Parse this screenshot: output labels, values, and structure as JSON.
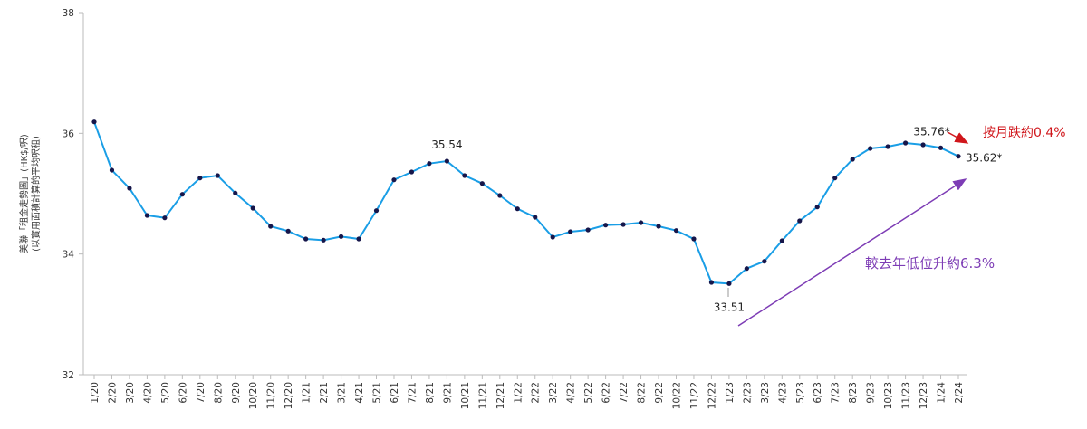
{
  "chart_data": {
    "type": "line",
    "y_label": [
      "美聯「租金走勢圖」(HK$/呎)",
      "(以實用面積計算的平均呎租)"
    ],
    "categories": [
      "1/20",
      "2/20",
      "3/20",
      "4/20",
      "5/20",
      "6/20",
      "7/20",
      "8/20",
      "9/20",
      "10/20",
      "11/20",
      "12/20",
      "1/21",
      "2/21",
      "3/21",
      "4/21",
      "5/21",
      "6/21",
      "7/21",
      "8/21",
      "9/21",
      "10/21",
      "11/21",
      "12/21",
      "1/22",
      "2/22",
      "3/22",
      "4/22",
      "5/22",
      "6/22",
      "7/22",
      "8/22",
      "9/22",
      "10/22",
      "11/22",
      "12/22",
      "1/23",
      "2/23",
      "3/23",
      "4/23",
      "5/23",
      "6/23",
      "7/23",
      "8/23",
      "9/23",
      "10/23",
      "11/23",
      "12/23",
      "1/24",
      "2/24"
    ],
    "values": [
      36.19,
      35.39,
      35.09,
      34.64,
      34.6,
      34.99,
      35.26,
      35.3,
      35.01,
      34.76,
      34.46,
      34.38,
      34.25,
      34.23,
      34.29,
      34.25,
      34.72,
      35.23,
      35.36,
      35.5,
      35.54,
      35.3,
      35.17,
      34.97,
      34.75,
      34.61,
      34.28,
      34.37,
      34.4,
      34.48,
      34.49,
      34.52,
      34.46,
      34.39,
      34.25,
      33.53,
      33.51,
      33.76,
      33.88,
      34.22,
      34.55,
      34.78,
      35.26,
      35.57,
      35.75,
      35.78,
      35.84,
      35.81,
      35.76,
      35.62
    ],
    "value_labels": [
      null,
      null,
      null,
      null,
      null,
      null,
      null,
      null,
      null,
      null,
      null,
      null,
      null,
      null,
      null,
      null,
      null,
      null,
      null,
      null,
      "35.54",
      null,
      null,
      null,
      null,
      null,
      null,
      null,
      null,
      null,
      null,
      null,
      null,
      null,
      null,
      null,
      "33.51",
      null,
      null,
      null,
      null,
      null,
      null,
      null,
      null,
      null,
      null,
      null,
      "35.76*",
      "35.62*"
    ],
    "color": "#1a9ee6",
    "marker_color": "#16164a",
    "ylim": [
      32,
      38
    ],
    "yticks": [
      32,
      34,
      36,
      38
    ],
    "annotations": [
      {
        "text": "按月跌約0.4%",
        "color": "#d0161b"
      },
      {
        "text": "較去年低位升約6.3%",
        "color": "#7d3cb5"
      }
    ]
  }
}
